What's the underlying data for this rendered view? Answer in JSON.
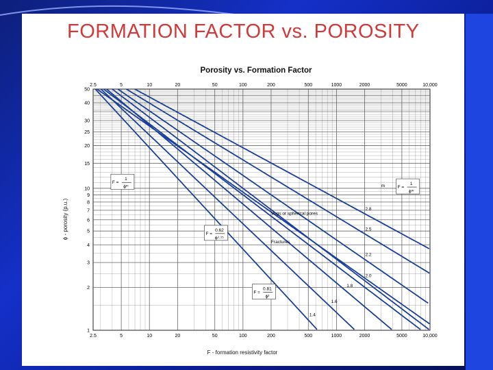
{
  "slide": {
    "title": "FORMATION FACTOR vs. POROSITY",
    "colors": {
      "title": "#d23a3a",
      "background": "#1430c8",
      "line": "#1a3f9a",
      "grid": "#555555"
    }
  },
  "chart_data": {
    "type": "line",
    "title": "Porosity vs. Formation Factor",
    "xlabel": "F - formation resistivity factor",
    "ylabel": "ϕ - porosity (p.u.)",
    "x_scale": "log",
    "y_scale": "log",
    "xlim": [
      2.5,
      10000
    ],
    "ylim": [
      1,
      50
    ],
    "x_ticks": [
      "2.5",
      "5",
      "10",
      "20",
      "50",
      "100",
      "200",
      "500",
      "1000",
      "2000",
      "5000",
      "10,000"
    ],
    "x_ticks_top": [
      "2.5",
      "5",
      "10",
      "20",
      "50",
      "100",
      "200",
      "500",
      "1000",
      "2000",
      "5000",
      "10,000"
    ],
    "y_ticks": [
      "1",
      "2",
      "3",
      "4",
      "5",
      "6",
      "7",
      "8",
      "9",
      "10",
      "15",
      "20",
      "25",
      "30",
      "40",
      "50"
    ],
    "grid": true,
    "series": [
      {
        "name": "1.4",
        "a": 1,
        "m": 1.4,
        "label_at_x": 480
      },
      {
        "name": "1.6",
        "a": 1,
        "m": 1.6,
        "label_at_x": 820
      },
      {
        "name": "1.8",
        "a": 1,
        "m": 1.8,
        "label_at_x": 1200
      },
      {
        "name": "2.0",
        "a": 1,
        "m": 2.0,
        "label_at_x": 1900
      },
      {
        "name": "2.2",
        "a": 1,
        "m": 2.2,
        "label_at_x": 1900
      },
      {
        "name": "2.5",
        "a": 1,
        "m": 2.5,
        "label_at_x": 1900
      },
      {
        "name": "2.8",
        "a": 1,
        "m": 2.8,
        "label_at_x": 1900
      },
      {
        "name": "",
        "a": 0.62,
        "m": 2.15
      },
      {
        "name": "",
        "a": 0.81,
        "m": 2.0
      }
    ],
    "annotations": [
      {
        "text": "F = 1/ϕᵐ",
        "numerator": "1",
        "denominator": "ϕᵐ",
        "anchor_x": 4,
        "anchor_y": 11
      },
      {
        "text": "Vugs or spherical pores",
        "anchor_x": 200,
        "anchor_y": 6.5
      },
      {
        "text": "F = 0.62/ϕ^2.15",
        "numerator": "0.62",
        "denominator": "ϕ²·¹⁵",
        "anchor_x": 40,
        "anchor_y": 4.8
      },
      {
        "text": "Fractures",
        "anchor_x": 200,
        "anchor_y": 4.1
      },
      {
        "text": "F = 0.81/ϕ²",
        "numerator": "0.81",
        "denominator": "ϕ²",
        "anchor_x": 130,
        "anchor_y": 1.85
      },
      {
        "text": "m",
        "anchor_x": 3000,
        "anchor_y": 10.2
      },
      {
        "text": "F = 1/ϕᵐ",
        "numerator": "1",
        "denominator": "ϕᵐ",
        "anchor_x": 4500,
        "anchor_y": 10.2
      }
    ]
  }
}
